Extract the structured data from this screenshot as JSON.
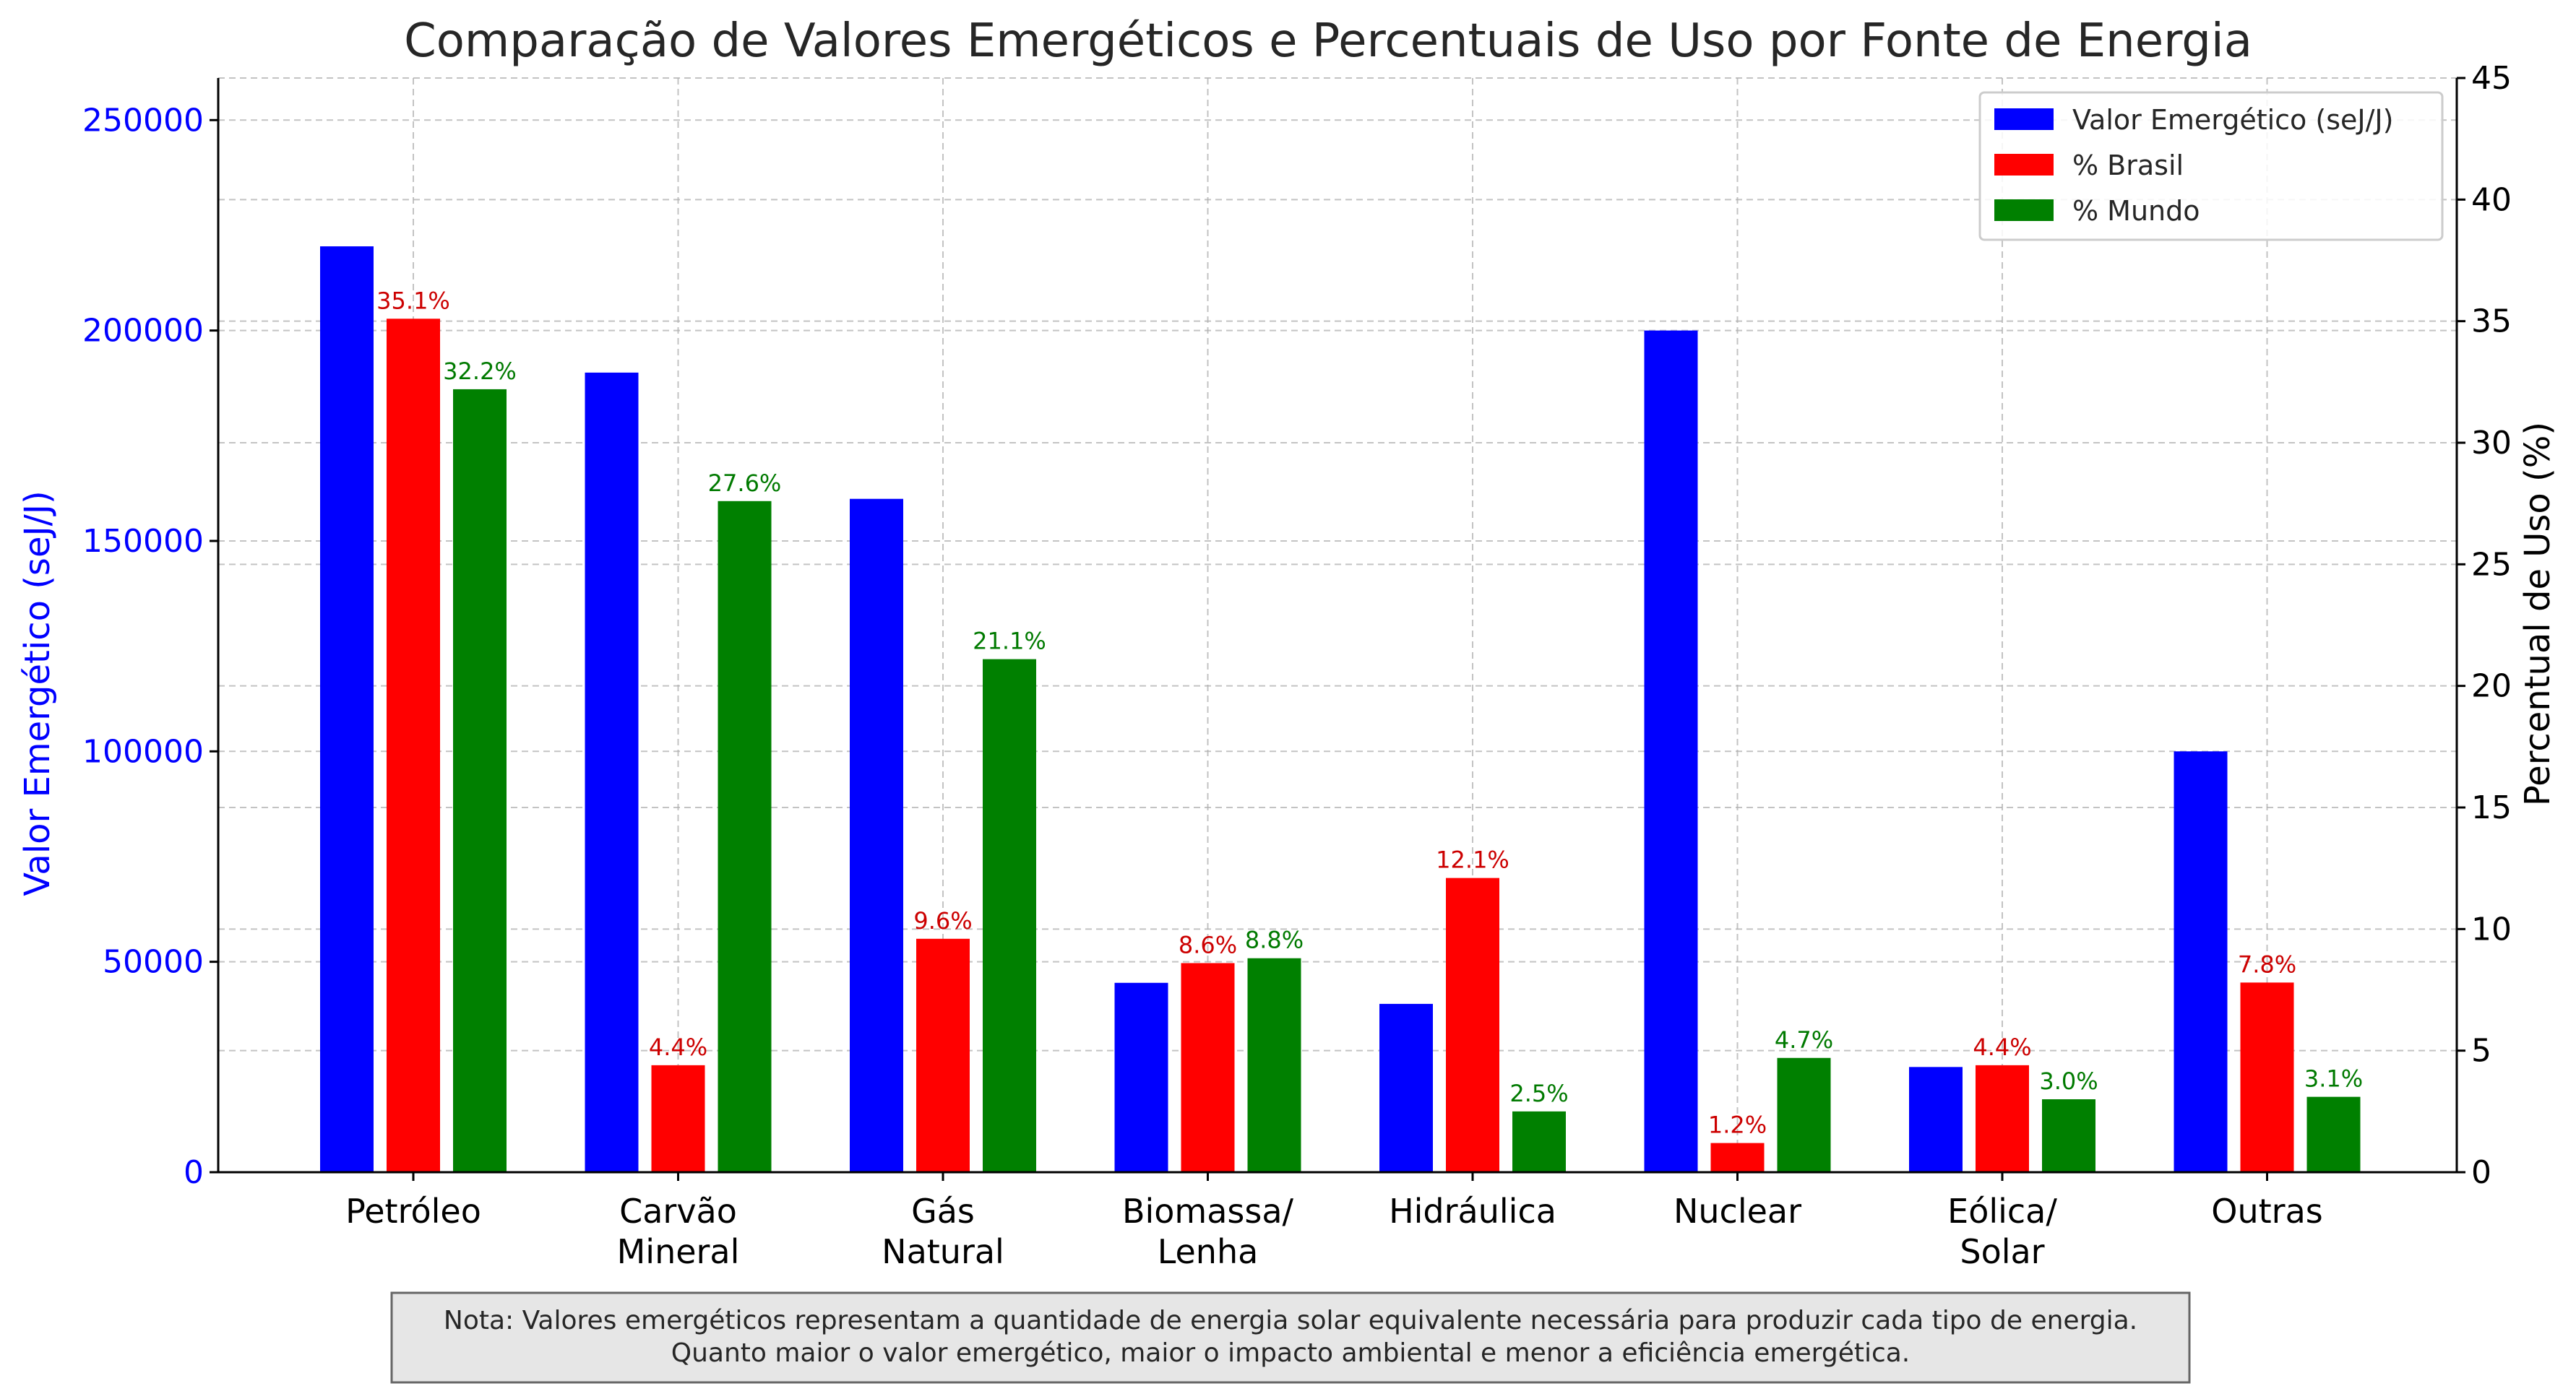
{
  "chart_data": {
    "type": "bar",
    "title": "Comparação de Valores Emergéticos e Percentuais de Uso por Fonte de Energia",
    "categories": [
      "Petróleo",
      "Carvão Mineral",
      "Gás Natural",
      "Biomassa/ Lenha",
      "Hidráulica",
      "Nuclear",
      "Eólica/ Solar",
      "Outras"
    ],
    "category_lines": [
      [
        "Petróleo"
      ],
      [
        "Carvão",
        "Mineral"
      ],
      [
        "Gás",
        "Natural"
      ],
      [
        "Biomassa/",
        "Lenha"
      ],
      [
        "Hidráulica"
      ],
      [
        "Nuclear"
      ],
      [
        "Eólica/",
        "Solar"
      ],
      [
        "Outras"
      ]
    ],
    "ylabel_left": "Valor Emergético (seJ/J)",
    "ylabel_right": "Percentual de Uso (%)",
    "ylim_left": [
      0,
      260000
    ],
    "ylim_right": [
      0,
      45
    ],
    "yticks_left": [
      0,
      50000,
      100000,
      150000,
      200000,
      250000
    ],
    "yticks_right": [
      0,
      5,
      10,
      15,
      20,
      25,
      30,
      35,
      40,
      45
    ],
    "grid": true,
    "legend_position": "top-right",
    "series": [
      {
        "name": "Valor Emergético (seJ/J)",
        "axis": "left",
        "color": "#0000ff",
        "values": [
          220000,
          190000,
          160000,
          45000,
          40000,
          200000,
          25000,
          100000
        ]
      },
      {
        "name": "% Brasil",
        "axis": "right",
        "color": "#ff0000",
        "label_color": "#cc0000",
        "values": [
          35.1,
          4.4,
          9.6,
          8.6,
          12.1,
          1.2,
          4.4,
          7.8
        ],
        "labels": [
          "35.1%",
          "4.4%",
          "9.6%",
          "8.6%",
          "12.1%",
          "1.2%",
          "4.4%",
          "7.8%"
        ]
      },
      {
        "name": "% Mundo",
        "axis": "right",
        "color": "#008000",
        "label_color": "#007a00",
        "values": [
          32.2,
          27.6,
          21.1,
          8.8,
          2.5,
          4.7,
          3.0,
          3.1
        ],
        "labels": [
          "32.2%",
          "27.6%",
          "21.1%",
          "8.8%",
          "2.5%",
          "4.7%",
          "3.0%",
          "3.1%"
        ]
      }
    ],
    "note": [
      "Nota: Valores emergéticos representam a quantidade de energia solar equivalente necessária para produzir cada tipo de energia.",
      "Quanto maior o valor emergético, maior o impacto ambiental e menor a eficiência emergética."
    ]
  }
}
